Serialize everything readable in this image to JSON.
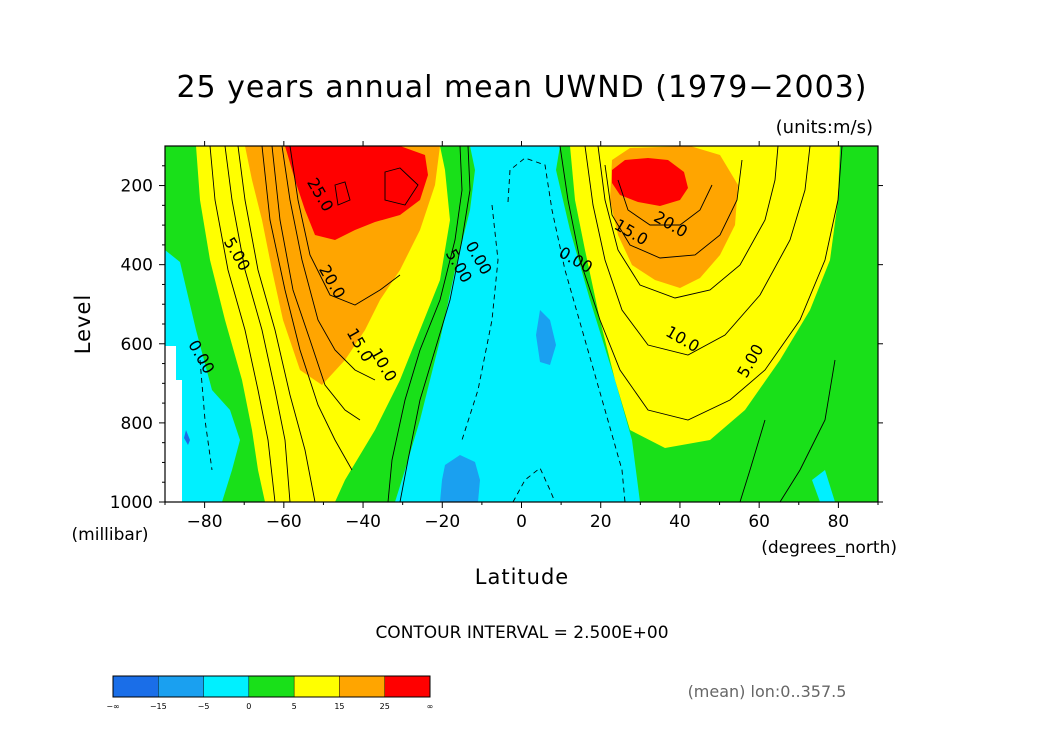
{
  "chart_data": {
    "type": "heatmap",
    "subtype": "filled-contour",
    "title": "25 years annual mean UWND (1979−2003)",
    "units_note": "(units:m/s)",
    "xlabel": "Latitude",
    "x_units": "(degrees_north)",
    "ylabel": "Level",
    "y_units": "(millibar)",
    "xlim": [
      -90,
      90
    ],
    "ylim": [
      1000,
      100
    ],
    "y_inverted": true,
    "x_ticks": [
      {
        "value": -80,
        "label": "−80"
      },
      {
        "value": -60,
        "label": "−60"
      },
      {
        "value": -40,
        "label": "−40"
      },
      {
        "value": -20,
        "label": "−20"
      },
      {
        "value": 0,
        "label": "0"
      },
      {
        "value": 20,
        "label": "20"
      },
      {
        "value": 40,
        "label": "40"
      },
      {
        "value": 60,
        "label": "60"
      },
      {
        "value": 80,
        "label": "80"
      }
    ],
    "y_ticks": [
      {
        "value": 200,
        "label": "200"
      },
      {
        "value": 400,
        "label": "400"
      },
      {
        "value": 600,
        "label": "600"
      },
      {
        "value": 800,
        "label": "800"
      },
      {
        "value": 1000,
        "label": "1000"
      }
    ],
    "contour_interval_text": "CONTOUR INTERVAL = 2.500E+00",
    "annotation": "(mean) lon:0..357.5",
    "color_levels": [
      {
        "lo": null,
        "hi": -15,
        "color": "#1a6ee8"
      },
      {
        "lo": -15,
        "hi": -5,
        "color": "#1aa0f0"
      },
      {
        "lo": -5,
        "hi": 0,
        "color": "#00f0ff"
      },
      {
        "lo": 0,
        "hi": 5,
        "color": "#19e019"
      },
      {
        "lo": 5,
        "hi": 15,
        "color": "#ffff00"
      },
      {
        "lo": 15,
        "hi": 25,
        "color": "#ffa500"
      },
      {
        "lo": 25,
        "hi": null,
        "color": "#ff0000"
      }
    ],
    "colorbar_labels": [
      "−∞",
      "−15",
      "−5",
      "0",
      "5",
      "15",
      "25",
      "∞"
    ],
    "contour_labels": [
      {
        "text": "25.0",
        "lat": -52,
        "lev": 230
      },
      {
        "text": "20.0",
        "lat": -49,
        "lev": 450
      },
      {
        "text": "15.0",
        "lat": -42,
        "lev": 610
      },
      {
        "text": "10.0",
        "lat": -36,
        "lev": 660
      },
      {
        "text": "5.00",
        "lat": -73,
        "lev": 380
      },
      {
        "text": "0.00",
        "lat": -82,
        "lev": 640
      },
      {
        "text": "5.00",
        "lat": -17,
        "lev": 410
      },
      {
        "text": "0.00",
        "lat": -12,
        "lev": 390
      },
      {
        "text": "0.00",
        "lat": 13,
        "lev": 400
      },
      {
        "text": "15.0",
        "lat": 27,
        "lev": 330
      },
      {
        "text": "20.0",
        "lat": 37,
        "lev": 310
      },
      {
        "text": "10.0",
        "lat": 40,
        "lev": 600
      },
      {
        "text": "5.00",
        "lat": 59,
        "lev": 650
      }
    ],
    "field_features": [
      {
        "name": "southern-jet",
        "lat": -46,
        "lev": 220,
        "peak": 31
      },
      {
        "name": "northern-jet",
        "lat": 35,
        "lev": 200,
        "peak": 27
      },
      {
        "name": "tropical-easterlies",
        "lat": 2,
        "lev": 950,
        "peak": -8
      }
    ]
  }
}
